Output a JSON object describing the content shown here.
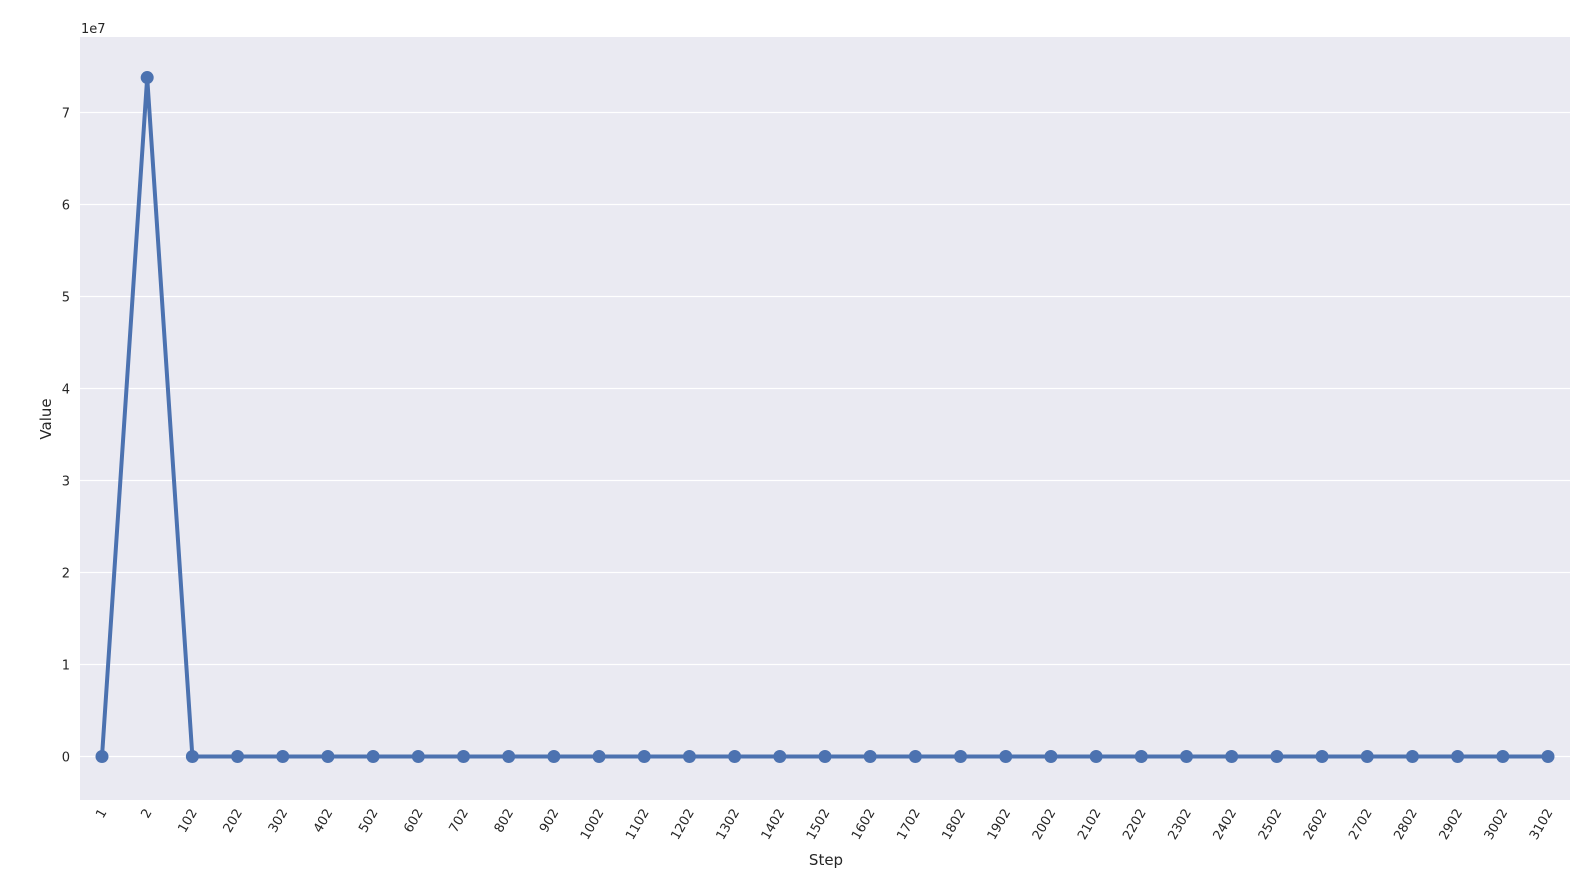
{
  "chart_data": {
    "type": "line",
    "title": "",
    "xlabel": "Step",
    "ylabel": "Value",
    "y_offset_label": "1e7",
    "categories": [
      "1",
      "2",
      "102",
      "202",
      "302",
      "402",
      "502",
      "602",
      "702",
      "802",
      "902",
      "1002",
      "1102",
      "1202",
      "1302",
      "1402",
      "1502",
      "1602",
      "1702",
      "1802",
      "1902",
      "2002",
      "2102",
      "2202",
      "2302",
      "2402",
      "2502",
      "2602",
      "2702",
      "2802",
      "2902",
      "3002",
      "3102"
    ],
    "y_ticks": [
      0,
      1,
      2,
      3,
      4,
      5,
      6,
      7
    ],
    "y_tick_labels": [
      "0",
      "1",
      "2",
      "3",
      "4",
      "5",
      "6",
      "7"
    ],
    "y_scale_factor": 10000000,
    "ylim": [
      -4600000,
      78400000
    ],
    "grid": true,
    "legend": "none",
    "series": [
      {
        "values": [
          0,
          73800000,
          0,
          0,
          0,
          0,
          0,
          0,
          0,
          0,
          0,
          0,
          0,
          0,
          0,
          0,
          0,
          0,
          0,
          0,
          0,
          0,
          0,
          0,
          0,
          0,
          0,
          0,
          0,
          0,
          0,
          0,
          0
        ]
      }
    ],
    "colors": {
      "plot_background": "#EAEAF2",
      "grid": "#FFFFFF",
      "line": "#4C72B0"
    }
  }
}
